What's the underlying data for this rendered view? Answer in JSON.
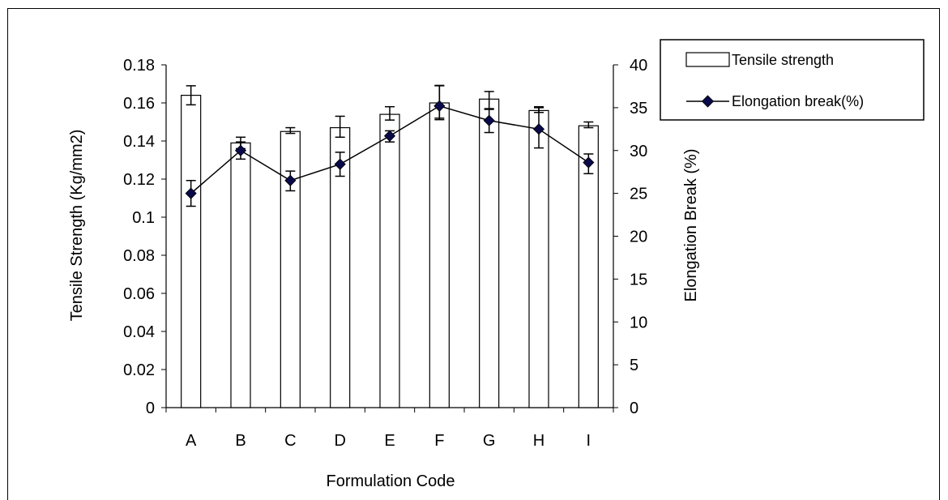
{
  "chart_data": {
    "type": "bar",
    "categories": [
      "A",
      "B",
      "C",
      "D",
      "E",
      "F",
      "G",
      "H",
      "I"
    ],
    "xlabel": "Formulation Code",
    "ylabel": "Tensile Strength (Kg/mm2)",
    "y2label": "Elongation Break (%)",
    "ylim": [
      0,
      0.18
    ],
    "y2lim": [
      0,
      40
    ],
    "yticks": [
      "0",
      "0.02",
      "0.04",
      "0.06",
      "0.08",
      "0.1",
      "0.12",
      "0.14",
      "0.16",
      "0.18"
    ],
    "y2ticks": [
      "0",
      "5",
      "10",
      "15",
      "20",
      "25",
      "30",
      "35",
      "40"
    ],
    "legend_position": "top-right",
    "series": [
      {
        "name": "Tensile strength",
        "type": "bar",
        "axis": "left",
        "values": [
          0.164,
          0.139,
          0.145,
          0.147,
          0.154,
          0.16,
          0.162,
          0.156,
          0.148
        ],
        "err_low": [
          0.159,
          0.136,
          0.144,
          0.142,
          0.151,
          0.152,
          0.157,
          0.155,
          0.147
        ],
        "err_high": [
          0.169,
          0.142,
          0.147,
          0.153,
          0.158,
          0.169,
          0.166,
          0.158,
          0.15
        ]
      },
      {
        "name": "Elongation break(%)",
        "type": "line",
        "axis": "right",
        "values": [
          25.0,
          30.0,
          26.5,
          28.4,
          31.7,
          35.2,
          33.5,
          32.5,
          28.6
        ],
        "err_low": [
          23.5,
          29.0,
          25.3,
          27.0,
          31.0,
          33.6,
          32.1,
          30.3,
          27.3
        ],
        "err_high": [
          26.5,
          31.0,
          27.6,
          29.8,
          32.3,
          37.6,
          34.8,
          35.0,
          29.6
        ]
      }
    ],
    "colors": {
      "bar_fill": "#ffffff",
      "bar_stroke": "#000000",
      "line": "#000000",
      "marker": "#0a0a4a"
    }
  }
}
